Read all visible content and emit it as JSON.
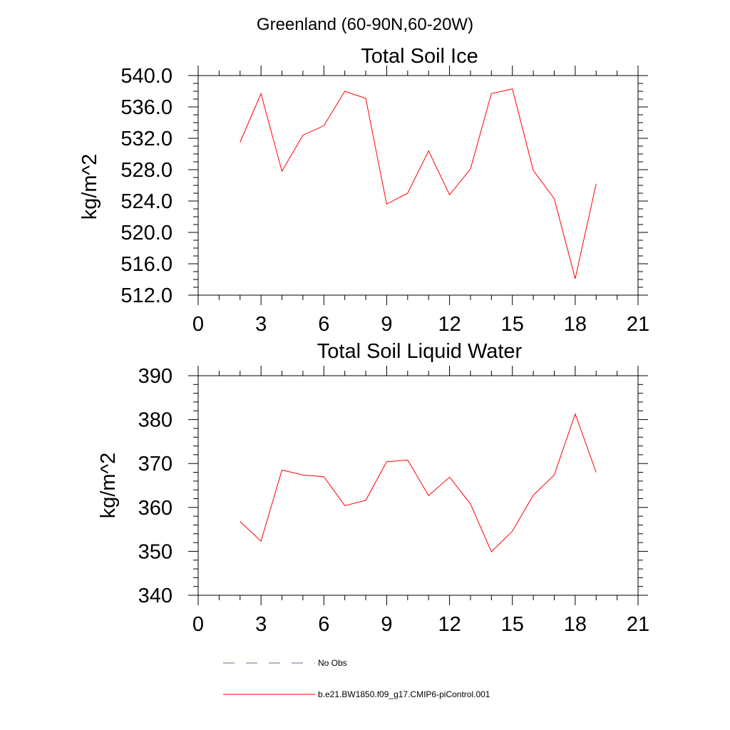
{
  "suptitle": "Greenland (60-90N,60-20W)",
  "chart_data": [
    {
      "type": "line",
      "title": "Total Soil Ice",
      "xlabel": "",
      "ylabel": "kg/m^2",
      "xlim": [
        0,
        21
      ],
      "ylim": [
        512,
        540
      ],
      "xticks": [
        0,
        3,
        6,
        9,
        12,
        15,
        18,
        21
      ],
      "xtick_labels": [
        "0",
        "3",
        "6",
        "9",
        "12",
        "15",
        "18",
        "21"
      ],
      "yticks": [
        512,
        516,
        520,
        524,
        528,
        532,
        536,
        540
      ],
      "ytick_labels": [
        "512.0",
        "516.0",
        "520.0",
        "524.0",
        "528.0",
        "532.0",
        "536.0",
        "540.0"
      ],
      "series": [
        {
          "name": "b.e21.BW1850.f09_g17.CMIP6-piControl.001",
          "color": "#ff0000",
          "x": [
            2,
            3,
            4,
            5,
            6,
            7,
            8,
            9,
            10,
            11,
            12,
            13,
            14,
            15,
            16,
            17,
            18,
            19
          ],
          "values": [
            531.5,
            537.7,
            527.8,
            532.4,
            533.6,
            538.0,
            537.1,
            523.6,
            525.0,
            530.4,
            524.8,
            528.1,
            537.7,
            538.3,
            527.9,
            524.3,
            514.1,
            526.2
          ]
        }
      ]
    },
    {
      "type": "line",
      "title": "Total Soil Liquid Water",
      "xlabel": "",
      "ylabel": "kg/m^2",
      "xlim": [
        0,
        21
      ],
      "ylim": [
        340,
        390
      ],
      "xticks": [
        0,
        3,
        6,
        9,
        12,
        15,
        18,
        21
      ],
      "xtick_labels": [
        "0",
        "3",
        "6",
        "9",
        "12",
        "15",
        "18",
        "21"
      ],
      "yticks": [
        340,
        350,
        360,
        370,
        380,
        390
      ],
      "ytick_labels": [
        "340",
        "350",
        "360",
        "370",
        "380",
        "390"
      ],
      "series": [
        {
          "name": "b.e21.BW1850.f09_g17.CMIP6-piControl.001",
          "color": "#ff0000",
          "x": [
            2,
            3,
            4,
            5,
            6,
            7,
            8,
            9,
            10,
            11,
            12,
            13,
            14,
            15,
            16,
            17,
            18,
            19
          ],
          "values": [
            356.8,
            352.3,
            368.5,
            367.4,
            367.0,
            360.4,
            361.6,
            370.4,
            370.8,
            362.7,
            366.9,
            360.8,
            349.9,
            354.6,
            362.8,
            367.4,
            381.3,
            368.0
          ]
        }
      ]
    }
  ],
  "legend": [
    {
      "label": "No Obs",
      "style": "dashed",
      "color": "#6b6b8a"
    },
    {
      "label": "b.e21.BW1850.f09_g17.CMIP6-piControl.001",
      "style": "solid",
      "color": "#ff0000"
    }
  ]
}
